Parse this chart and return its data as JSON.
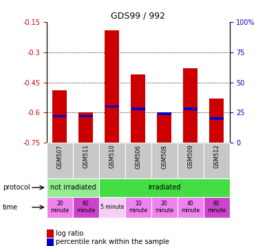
{
  "title": "GDS99 / 992",
  "samples": [
    "GSM507",
    "GSM511",
    "GSM510",
    "GSM506",
    "GSM508",
    "GSM509",
    "GSM512"
  ],
  "log_ratio_values": [
    -0.49,
    -0.6,
    -0.19,
    -0.41,
    -0.6,
    -0.38,
    -0.53
  ],
  "percentile_rank": [
    22,
    22,
    30,
    28,
    24,
    28,
    20
  ],
  "ylim_left": [
    -0.75,
    -0.15
  ],
  "yticks_left": [
    -0.75,
    -0.6,
    -0.45,
    -0.3,
    -0.15
  ],
  "yticks_right": [
    0,
    25,
    50,
    75,
    100
  ],
  "bar_color": "#cc0000",
  "marker_color": "#0000cc",
  "bar_width": 0.55,
  "background_color": "#ffffff",
  "ylabel_left_color": "#cc0000",
  "ylabel_right_color": "#0000cc",
  "proto_spans": [
    [
      0,
      2,
      "#90ee90",
      "not irradiated"
    ],
    [
      2,
      7,
      "#44dd44",
      "irradiated"
    ]
  ],
  "time_labels": [
    "20\nminute",
    "60\nminute",
    "5 minute",
    "10\nminute",
    "20\nminute",
    "40\nminute",
    "60\nminute"
  ],
  "time_colors": [
    "#ee82ee",
    "#cc44cc",
    "#f5d0f5",
    "#ee82ee",
    "#ee82ee",
    "#ee82ee",
    "#cc44cc"
  ],
  "sample_label_bg": "#c8c8c8"
}
